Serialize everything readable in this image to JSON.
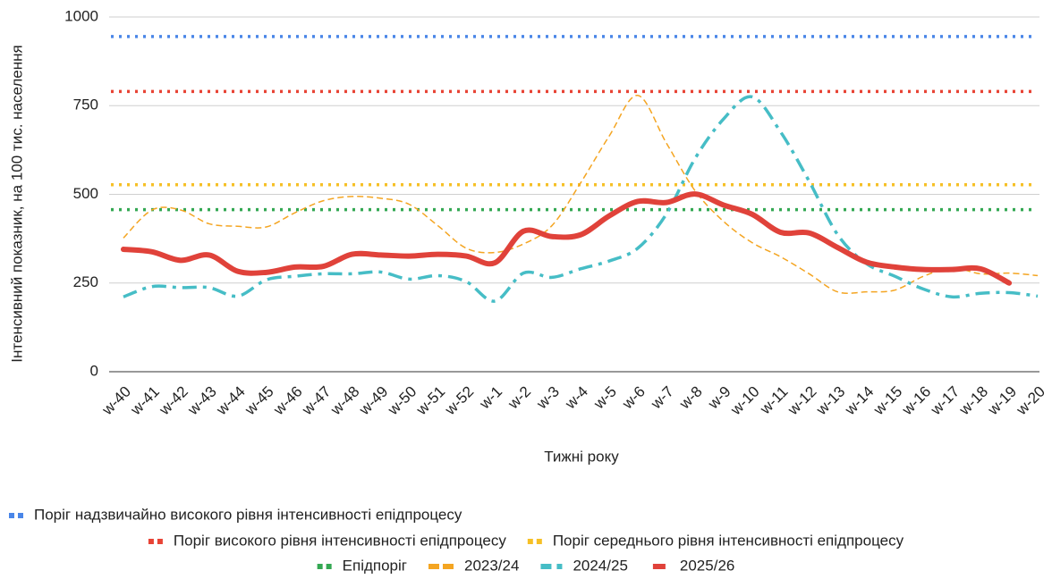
{
  "chart_data": {
    "type": "line",
    "xlabel": "Тижні року",
    "ylabel": "Інтенсивний показник, на 100 тис. населення",
    "categories": [
      "w-40",
      "w-41",
      "w-42",
      "w-43",
      "w-44",
      "w-45",
      "w-46",
      "w-47",
      "w-48",
      "w-49",
      "w-50",
      "w-51",
      "w-52",
      "w-1",
      "w-2",
      "w-3",
      "w-4",
      "w-5",
      "w-6",
      "w-7",
      "w-8",
      "w-9",
      "w-10",
      "w-11",
      "w-12",
      "w-13",
      "w-14",
      "w-15",
      "w-16",
      "w-17",
      "w-18",
      "w-19",
      "w-20"
    ],
    "ylim": [
      0,
      1000
    ],
    "yticks": [
      0,
      250,
      500,
      750,
      1000
    ],
    "grid": true,
    "reference_lines": [
      {
        "name": "Поріг надзвичайно високого рівня інтенсивності епідпроцесу",
        "color": "#4a86e8",
        "value": 945,
        "style": "dotted"
      },
      {
        "name": "Поріг високого рівня інтенсивності епідпроцесу",
        "color": "#e84335",
        "value": 790,
        "style": "dotted"
      },
      {
        "name": "Поріг середнього рівня інтенсивності епідпроцесу",
        "color": "#f6c026",
        "value": 527,
        "style": "dotted"
      },
      {
        "name": "Епідпоріг",
        "color": "#34a853",
        "value": 457,
        "style": "dotted"
      }
    ],
    "series": [
      {
        "name": "2023/24",
        "color": "#f4a522",
        "style": "dashed",
        "values": [
          377,
          456,
          456,
          417,
          410,
          408,
          448,
          482,
          494,
          489,
          472,
          412,
          348,
          336,
          360,
          412,
          532,
          664,
          779,
          645,
          511,
          424,
          364,
          324,
          276,
          225,
          225,
          230,
          269,
          293,
          276,
          278,
          271
        ]
      },
      {
        "name": "2024/25",
        "color": "#46bdc6",
        "style": "dashdot",
        "values": [
          211,
          240,
          237,
          237,
          213,
          259,
          269,
          276,
          276,
          281,
          261,
          271,
          254,
          199,
          278,
          266,
          290,
          312,
          348,
          444,
          600,
          712,
          775,
          676,
          537,
          386,
          305,
          269,
          233,
          211,
          221,
          223,
          213
        ]
      },
      {
        "name": "2025/26",
        "color": "#e0423a",
        "style": "solid",
        "values": [
          345,
          338,
          314,
          329,
          283,
          280,
          295,
          297,
          331,
          329,
          326,
          331,
          326,
          307,
          396,
          381,
          386,
          439,
          480,
          477,
          501,
          470,
          444,
          393,
          391,
          350,
          309,
          295,
          288,
          288,
          290,
          250,
          null
        ]
      }
    ],
    "legend": "bottom"
  }
}
